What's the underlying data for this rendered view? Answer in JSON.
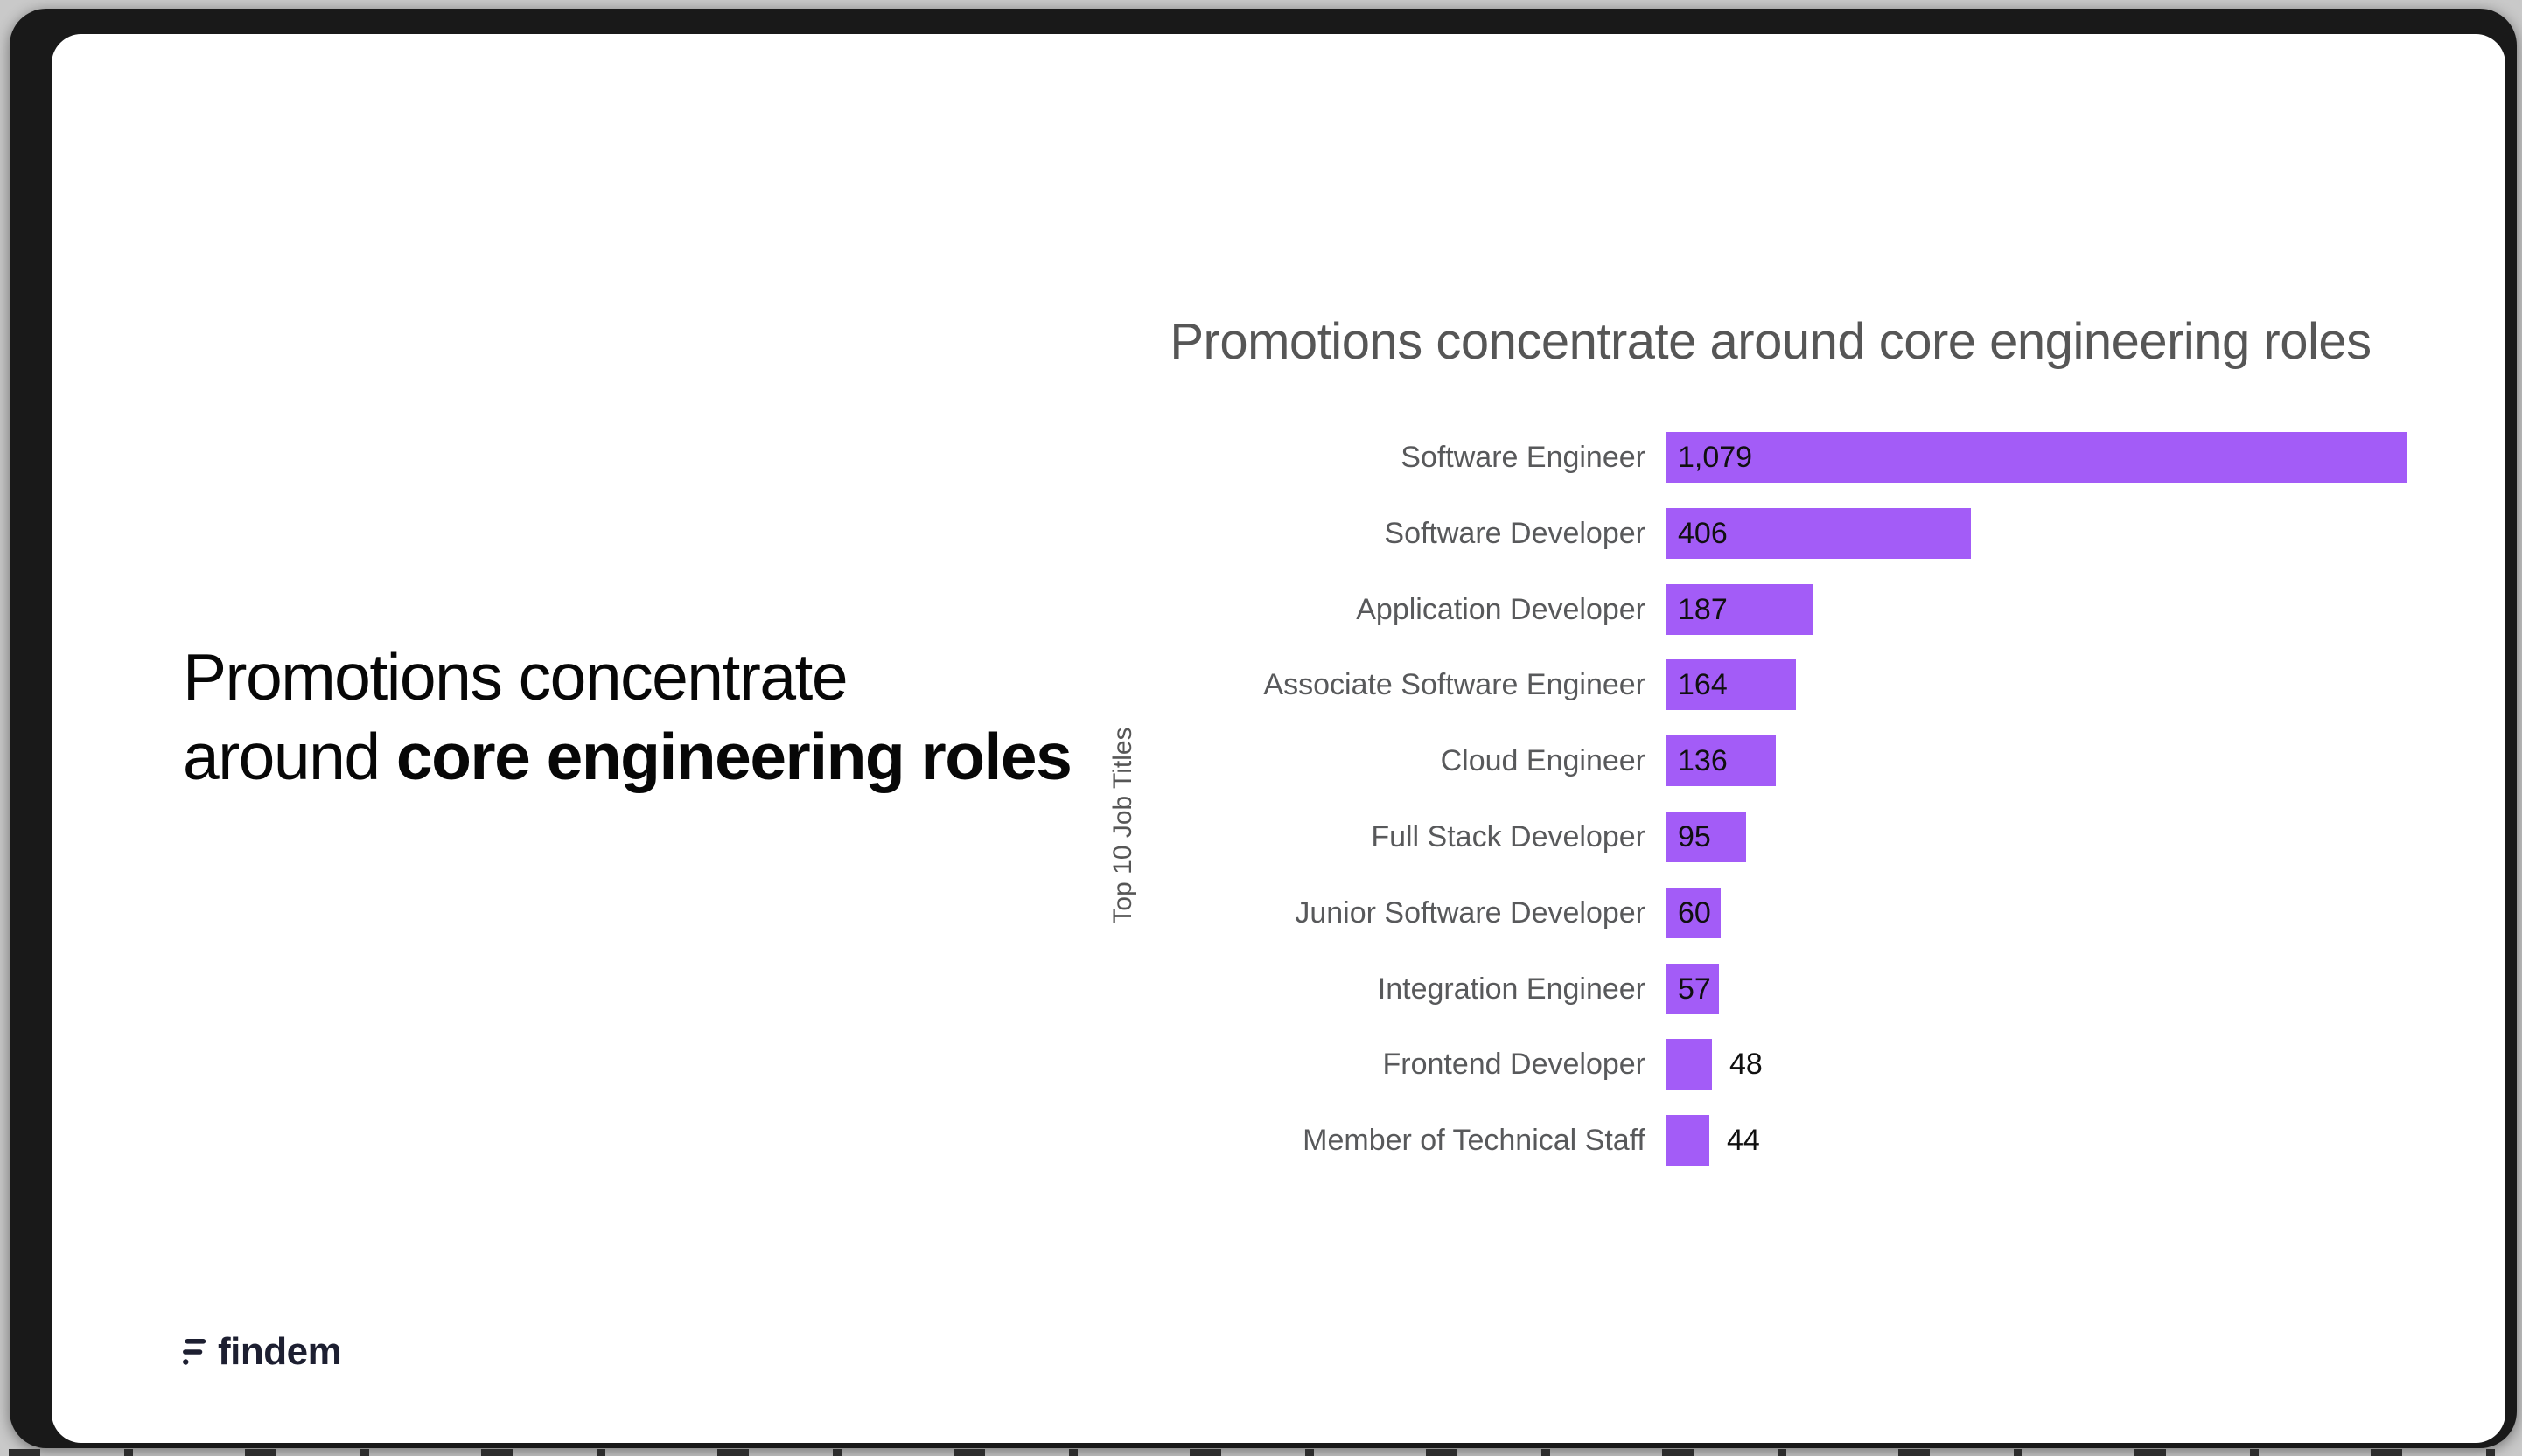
{
  "slide": {
    "headline": {
      "line1": "Promotions concentrate",
      "line2_regular": "around ",
      "line2_bold": "core engineering roles"
    },
    "logo_text": "findem"
  },
  "chart_data": {
    "type": "bar",
    "orientation": "horizontal",
    "title": "Promotions concentrate around core engineering roles",
    "xlabel": "",
    "ylabel": "Top 10 Job Titles",
    "categories": [
      "Software Engineer",
      "Software Developer",
      "Application Developer",
      "Associate Software Engineer",
      "Cloud Engineer",
      "Full Stack Developer",
      "Junior Software Developer",
      "Integration Engineer",
      "Frontend Developer",
      "Member of Technical Staff"
    ],
    "values": [
      1079,
      406,
      187,
      164,
      136,
      95,
      60,
      57,
      48,
      44
    ],
    "value_labels": [
      "1,079",
      "406",
      "187",
      "164",
      "136",
      "95",
      "60",
      "57",
      "48",
      "44"
    ],
    "xlim": [
      0,
      1079
    ],
    "grid": false,
    "legend": "none",
    "bar_color": "#a35cf7"
  },
  "colors": {
    "bar": "#a35cf7",
    "title_text": "#565656",
    "category_text": "#58595b",
    "value_text": "#101010",
    "headline_text": "#070707",
    "logo": "#1d1f31",
    "card_bg": "#ffffff",
    "frame_bg": "#191919",
    "page_bg": "#c9c9c9"
  }
}
